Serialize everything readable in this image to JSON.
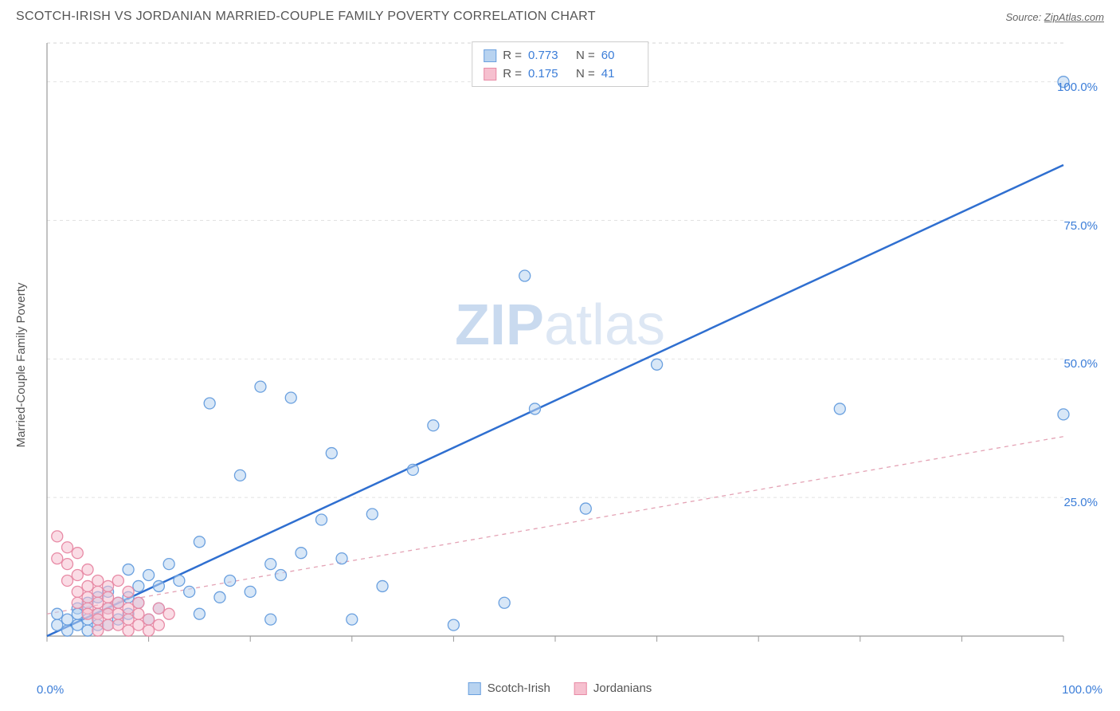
{
  "header": {
    "title": "SCOTCH-IRISH VS JORDANIAN MARRIED-COUPLE FAMILY POVERTY CORRELATION CHART",
    "source_label": "Source: ",
    "source_value": "ZipAtlas.com"
  },
  "y_axis_label": "Married-Couple Family Poverty",
  "chart": {
    "type": "scatter",
    "xlim": [
      0,
      100
    ],
    "ylim": [
      0,
      107
    ],
    "x_ticks": [
      0,
      10,
      20,
      30,
      40,
      50,
      60,
      70,
      80,
      90,
      100
    ],
    "y_gridlines": [
      25,
      50,
      75,
      100
    ],
    "y_tick_labels": [
      "25.0%",
      "50.0%",
      "75.0%",
      "100.0%"
    ],
    "x_origin_label": "0.0%",
    "x_max_label": "100.0%",
    "background_color": "#ffffff",
    "grid_color": "#e2e2e2",
    "grid_dash": "4 4",
    "axis_color": "#999999",
    "plot_border_top_color": "#d4d4d4",
    "marker_radius": 7,
    "marker_stroke_width": 1.3,
    "series": [
      {
        "name": "Scotch-Irish",
        "fill": "#b8d3f0",
        "fill_opacity": 0.55,
        "stroke": "#6aa0df",
        "trend": {
          "x1": 0,
          "y1": 0,
          "x2": 100,
          "y2": 85,
          "stroke": "#2f6fd0",
          "width": 2.5,
          "dash": "none"
        },
        "points": [
          [
            100,
            100
          ],
          [
            100,
            40
          ],
          [
            78,
            41
          ],
          [
            60,
            49
          ],
          [
            47,
            65
          ],
          [
            48,
            41
          ],
          [
            53,
            23
          ],
          [
            45,
            6
          ],
          [
            40,
            2
          ],
          [
            38,
            38
          ],
          [
            36,
            30
          ],
          [
            33,
            9
          ],
          [
            32,
            22
          ],
          [
            30,
            3
          ],
          [
            29,
            14
          ],
          [
            28,
            33
          ],
          [
            27,
            21
          ],
          [
            25,
            15
          ],
          [
            24,
            43
          ],
          [
            23,
            11
          ],
          [
            22,
            13
          ],
          [
            22,
            3
          ],
          [
            21,
            45
          ],
          [
            20,
            8
          ],
          [
            19,
            29
          ],
          [
            18,
            10
          ],
          [
            17,
            7
          ],
          [
            16,
            42
          ],
          [
            15,
            17
          ],
          [
            15,
            4
          ],
          [
            14,
            8
          ],
          [
            13,
            10
          ],
          [
            12,
            13
          ],
          [
            11,
            9
          ],
          [
            11,
            5
          ],
          [
            10,
            11
          ],
          [
            10,
            3
          ],
          [
            9,
            6
          ],
          [
            9,
            9
          ],
          [
            8,
            7
          ],
          [
            8,
            4
          ],
          [
            8,
            12
          ],
          [
            7,
            3
          ],
          [
            7,
            6
          ],
          [
            6,
            2
          ],
          [
            6,
            8
          ],
          [
            6,
            5
          ],
          [
            5,
            4
          ],
          [
            5,
            7
          ],
          [
            5,
            2
          ],
          [
            4,
            3
          ],
          [
            4,
            6
          ],
          [
            4,
            1
          ],
          [
            3,
            5
          ],
          [
            3,
            2
          ],
          [
            3,
            4
          ],
          [
            2,
            3
          ],
          [
            2,
            1
          ],
          [
            1,
            2
          ],
          [
            1,
            4
          ]
        ]
      },
      {
        "name": "Jordanians",
        "fill": "#f6c0cf",
        "fill_opacity": 0.55,
        "stroke": "#e88ba6",
        "trend": {
          "x1": 0,
          "y1": 4,
          "x2": 100,
          "y2": 36,
          "stroke": "#e4a3b5",
          "width": 1.3,
          "dash": "5 5"
        },
        "points": [
          [
            1,
            18
          ],
          [
            1,
            14
          ],
          [
            2,
            16
          ],
          [
            2,
            13
          ],
          [
            2,
            10
          ],
          [
            3,
            15
          ],
          [
            3,
            11
          ],
          [
            3,
            8
          ],
          [
            3,
            6
          ],
          [
            4,
            12
          ],
          [
            4,
            9
          ],
          [
            4,
            7
          ],
          [
            4,
            5
          ],
          [
            4,
            4
          ],
          [
            5,
            10
          ],
          [
            5,
            8
          ],
          [
            5,
            6
          ],
          [
            5,
            4
          ],
          [
            5,
            3
          ],
          [
            5,
            1
          ],
          [
            6,
            9
          ],
          [
            6,
            7
          ],
          [
            6,
            5
          ],
          [
            6,
            4
          ],
          [
            6,
            2
          ],
          [
            7,
            6
          ],
          [
            7,
            4
          ],
          [
            7,
            2
          ],
          [
            7,
            10
          ],
          [
            8,
            5
          ],
          [
            8,
            3
          ],
          [
            8,
            1
          ],
          [
            8,
            8
          ],
          [
            9,
            4
          ],
          [
            9,
            2
          ],
          [
            9,
            6
          ],
          [
            10,
            3
          ],
          [
            10,
            1
          ],
          [
            11,
            5
          ],
          [
            11,
            2
          ],
          [
            12,
            4
          ]
        ]
      }
    ]
  },
  "stats": {
    "rows": [
      {
        "swatch_fill": "#b8d3f0",
        "swatch_stroke": "#6aa0df",
        "r_label": "R =",
        "r": "0.773",
        "n_label": "N =",
        "n": "60"
      },
      {
        "swatch_fill": "#f6c0cf",
        "swatch_stroke": "#e88ba6",
        "r_label": "R =",
        "r": "0.175",
        "n_label": "N =",
        "n": "41"
      }
    ]
  },
  "legend": {
    "items": [
      {
        "label": "Scotch-Irish",
        "fill": "#b8d3f0",
        "stroke": "#6aa0df"
      },
      {
        "label": "Jordanians",
        "fill": "#f6c0cf",
        "stroke": "#e88ba6"
      }
    ]
  },
  "watermark": {
    "part1": "ZIP",
    "part2": "atlas"
  }
}
